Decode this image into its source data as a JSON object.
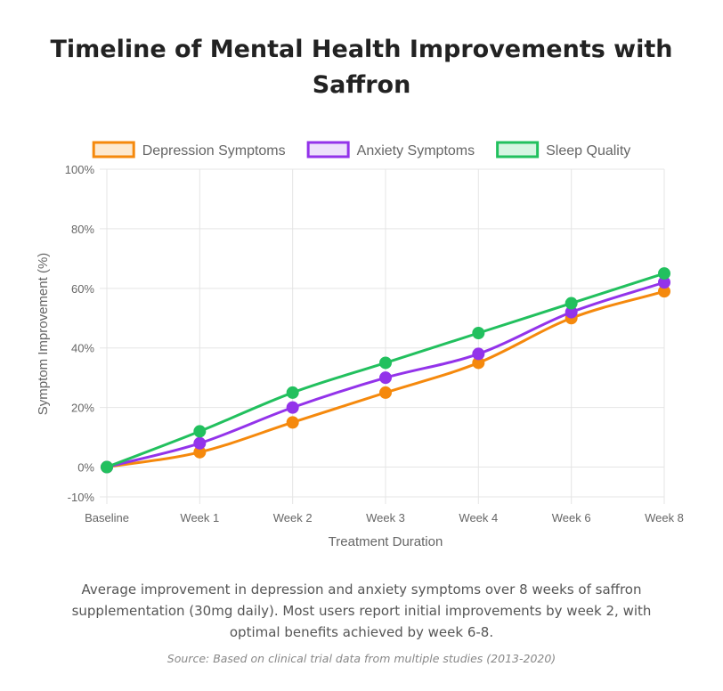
{
  "page": {
    "title_line1": "Timeline of Mental Health Improvements with",
    "title_line2": "Saffron",
    "caption": "Average improvement in depression and anxiety symptoms over 8 weeks of saffron supplementation (30mg daily). Most users report initial improvements by week 2, with optimal benefits achieved by week 6-8.",
    "source": "Source: Based on clinical trial data from multiple studies (2013-2020)"
  },
  "chart_data": {
    "type": "line",
    "title": "Timeline of Mental Health Improvements with Saffron",
    "xlabel": "Treatment Duration",
    "ylabel": "Symptom Improvement (%)",
    "categories": [
      "Baseline",
      "Week 1",
      "Week 2",
      "Week 3",
      "Week 4",
      "Week 6",
      "Week 8"
    ],
    "ylim": [
      -10,
      100
    ],
    "yticks": [
      -10,
      0,
      20,
      40,
      60,
      80,
      100
    ],
    "ytick_labels": [
      "-10%",
      "0%",
      "20%",
      "40%",
      "60%",
      "80%",
      "100%"
    ],
    "grid": true,
    "legend_position": "top",
    "series": [
      {
        "name": "Depression Symptoms",
        "color": "#f5890d",
        "fill": "#fde9d0",
        "values": [
          0,
          5,
          15,
          25,
          35,
          50,
          59
        ]
      },
      {
        "name": "Anxiety Symptoms",
        "color": "#9333ea",
        "fill": "#ede0fb",
        "values": [
          0,
          8,
          20,
          30,
          38,
          52,
          62
        ]
      },
      {
        "name": "Sleep Quality",
        "color": "#22c05e",
        "fill": "#d6f5e2",
        "values": [
          0,
          12,
          25,
          35,
          45,
          55,
          65
        ]
      }
    ]
  }
}
